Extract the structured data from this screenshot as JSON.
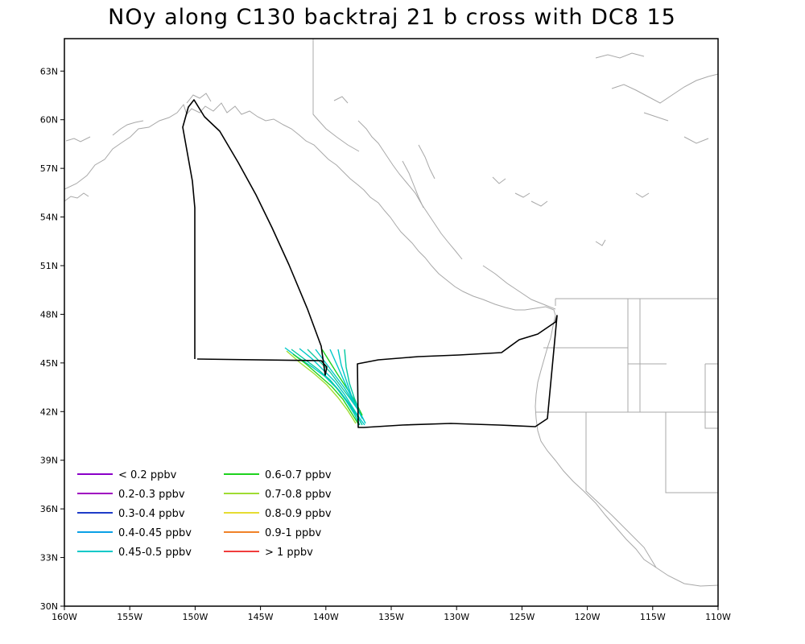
{
  "title": "NOy along C130 backtraj 21 b cross with DC8 15",
  "axes": {
    "x_ticks": [
      "160W",
      "155W",
      "150W",
      "145W",
      "140W",
      "135W",
      "130W",
      "125W",
      "120W",
      "115W",
      "110W"
    ],
    "x_values": [
      -160,
      -155,
      -150,
      -145,
      -140,
      -135,
      -130,
      -125,
      -120,
      -115,
      -110
    ],
    "y_ticks": [
      "30N",
      "33N",
      "36N",
      "39N",
      "42N",
      "45N",
      "48N",
      "51N",
      "54N",
      "57N",
      "60N",
      "63N"
    ],
    "y_values": [
      30,
      33,
      36,
      39,
      42,
      45,
      48,
      51,
      54,
      57,
      60,
      63
    ],
    "lon_range": [
      -160,
      -110
    ],
    "lat_range": [
      30,
      65
    ]
  },
  "legend": [
    {
      "label": "< 0.2 ppbv",
      "color": "#8a00c8"
    },
    {
      "label": "0.2-0.3 ppbv",
      "color": "#a000c0"
    },
    {
      "label": "0.3-0.4 ppbv",
      "color": "#1e3cc8"
    },
    {
      "label": "0.4-0.45 ppbv",
      "color": "#0aa0e6"
    },
    {
      "label": "0.45-0.5 ppbv",
      "color": "#00c8c8"
    },
    {
      "label": "0.6-0.7 ppbv",
      "color": "#1ed21e"
    },
    {
      "label": "0.7-0.8 ppbv",
      "color": "#a0dc32"
    },
    {
      "label": "0.8-0.9 ppbv",
      "color": "#e6dc32"
    },
    {
      "label": "0.9-1 ppbv",
      "color": "#f08228"
    },
    {
      "label": "> 1 ppbv",
      "color": "#f03c3c"
    }
  ]
}
